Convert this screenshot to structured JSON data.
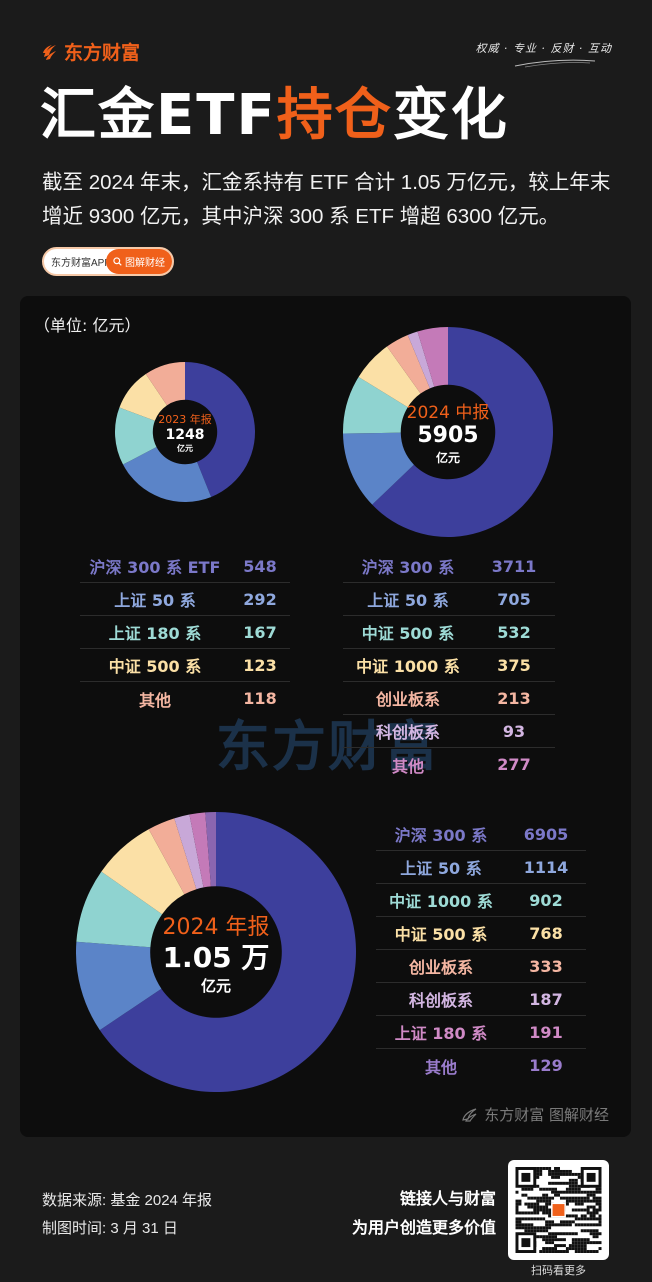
{
  "header": {
    "brand": "东方财富",
    "slogan": "权威 · 专业 · 反财 · 互动",
    "title_part1": "汇金ETF",
    "title_highlight": "持仓",
    "title_part2": "变化",
    "intro": "截至 2024 年末，汇金系持有 ETF 合计 1.05 万亿元，较上年末增近 9300 亿元，其中沪深 300 系 ETF 增超 6300 亿元。",
    "app_pill": {
      "label": "东方财富APP",
      "button": "图解财经",
      "button_icon": "search-icon"
    }
  },
  "colors": {
    "accent": "#f0601a",
    "background": "#1b1b1b",
    "panel": "#0d0d0d",
    "hs300": "#3d3f9c",
    "sz50": "#5b84c8",
    "teal": "#8fd3d0",
    "cream": "#fbe0a6",
    "salmon": "#f2ad98",
    "lavender": "#c8a8d8",
    "orchid": "#c47ab8",
    "purple": "#8a66b0"
  },
  "panel": {
    "unit_label": "（单位: 亿元）",
    "watermark": "东方财富",
    "credit": "东方财富 图解财经"
  },
  "chart_data": [
    {
      "type": "pie",
      "title": "2023 年报",
      "center_total": "1248",
      "center_unit": "亿元",
      "unit": "亿元",
      "categories": [
        "沪深 300 系 ETF",
        "上证 50 系",
        "上证 180 系",
        "中证 500 系",
        "其他"
      ],
      "values": [
        548,
        292,
        167,
        123,
        118
      ],
      "colors": [
        "#3d3f9c",
        "#5b84c8",
        "#8fd3d0",
        "#fbe0a6",
        "#f2ad98"
      ]
    },
    {
      "type": "pie",
      "title": "2024 中报",
      "center_total": "5905",
      "center_unit": "亿元",
      "unit": "亿元",
      "categories": [
        "沪深 300 系",
        "上证 50 系",
        "中证 500 系",
        "中证 1000 系",
        "创业板系",
        "科创板系",
        "其他"
      ],
      "values": [
        3711,
        705,
        532,
        375,
        213,
        93,
        277
      ],
      "colors": [
        "#3d3f9c",
        "#5b84c8",
        "#8fd3d0",
        "#fbe0a6",
        "#f2ad98",
        "#c8a8d8",
        "#c47ab8"
      ]
    },
    {
      "type": "pie",
      "title": "2024 年报",
      "center_total": "1.05 万",
      "center_unit": "亿元",
      "unit": "亿元",
      "categories": [
        "沪深 300 系",
        "上证 50 系",
        "中证 1000 系",
        "中证 500 系",
        "创业板系",
        "科创板系",
        "上证 180 系",
        "其他"
      ],
      "values": [
        6905,
        1114,
        902,
        768,
        333,
        187,
        191,
        129
      ],
      "colors": [
        "#3d3f9c",
        "#5b84c8",
        "#8fd3d0",
        "#fbe0a6",
        "#f2ad98",
        "#c8a8d8",
        "#c47ab8",
        "#8a66b0"
      ]
    }
  ],
  "tables": {
    "t2023": [
      {
        "name": "沪深 300 系 ETF",
        "value": "548",
        "color": "#7b78c8"
      },
      {
        "name": "上证 50 系",
        "value": "292",
        "color": "#8fa8de"
      },
      {
        "name": "上证 180 系",
        "value": "167",
        "color": "#9edbd6"
      },
      {
        "name": "中证 500 系",
        "value": "123",
        "color": "#fbe0a6"
      },
      {
        "name": "其他",
        "value": "118",
        "color": "#f4b6a2"
      }
    ],
    "t2024h": [
      {
        "name": "沪深 300 系",
        "value": "3711",
        "color": "#7b78c8"
      },
      {
        "name": "上证 50 系",
        "value": "705",
        "color": "#8fa8de"
      },
      {
        "name": "中证 500 系",
        "value": "532",
        "color": "#9edbd6"
      },
      {
        "name": "中证 1000 系",
        "value": "375",
        "color": "#fbe0a6"
      },
      {
        "name": "创业板系",
        "value": "213",
        "color": "#f4b6a2"
      },
      {
        "name": "科创板系",
        "value": "93",
        "color": "#d3b6e2"
      },
      {
        "name": "其他",
        "value": "277",
        "color": "#d08ac6"
      }
    ],
    "t2024": [
      {
        "name": "沪深 300 系",
        "value": "6905",
        "color": "#7b78c8"
      },
      {
        "name": "上证 50 系",
        "value": "1114",
        "color": "#8fa8de"
      },
      {
        "name": "中证 1000 系",
        "value": "902",
        "color": "#9edbd6"
      },
      {
        "name": "中证 500 系",
        "value": "768",
        "color": "#fbe0a6"
      },
      {
        "name": "创业板系",
        "value": "333",
        "color": "#f4b6a2"
      },
      {
        "name": "科创板系",
        "value": "187",
        "color": "#d3b6e2"
      },
      {
        "name": "上证 180 系",
        "value": "191",
        "color": "#d08ac6"
      },
      {
        "name": "其他",
        "value": "129",
        "color": "#9a7ccc"
      }
    ]
  },
  "footer": {
    "source": "数据来源: 基金 2024 年报",
    "date": "制图时间: 3 月 31 日",
    "slogan_line1": "链接人与财富",
    "slogan_line2": "为用户创造更多价值",
    "qr_caption": "扫码看更多"
  }
}
